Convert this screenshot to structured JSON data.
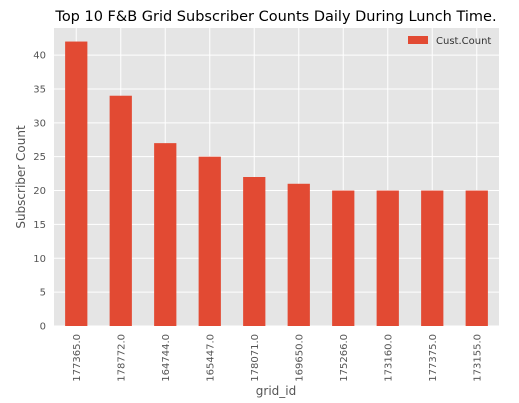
{
  "chart_data": {
    "type": "bar",
    "title": "Top 10 F&B Grid Subscriber Counts Daily During Lunch Time.",
    "xlabel": "grid_id",
    "ylabel": "Subscriber Count",
    "categories": [
      "177365.0",
      "178772.0",
      "164744.0",
      "165447.0",
      "178071.0",
      "169650.0",
      "175266.0",
      "173160.0",
      "177375.0",
      "173155.0"
    ],
    "series": [
      {
        "name": "Cust.Count",
        "values": [
          42,
          34,
          27,
          25,
          22,
          21,
          20,
          20,
          20,
          20
        ],
        "color": "#E24A33"
      }
    ],
    "ylim": [
      0,
      44
    ],
    "yticks": [
      0,
      5,
      10,
      15,
      20,
      25,
      30,
      35,
      40
    ],
    "grid": true,
    "legend_position": "top-right",
    "background_color": "#E5E5E5",
    "grid_color": "#FFFFFF"
  }
}
